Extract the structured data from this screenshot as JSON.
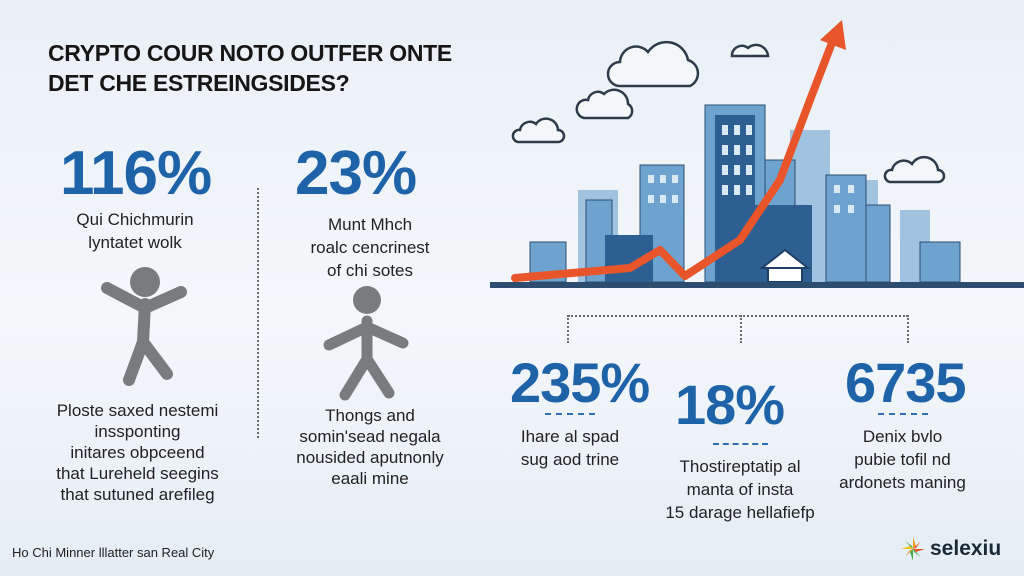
{
  "title": {
    "line1": "CRYPTO COUR NOTO OUTFER ONTE",
    "line2": "DET CHE ESTREINGSIDES?"
  },
  "stats_left": [
    {
      "value": "116%",
      "lines": [
        "Qui Chichmurin",
        "lyntatet wolk"
      ],
      "figure_icon": "person-jumping-icon",
      "notes": [
        "Ploste saxed nestemi",
        "inssponting",
        "initares obpceend",
        "that Lureheld seegins",
        "that sutuned arefileg"
      ]
    },
    {
      "value": "23%",
      "lines": [
        "Munt Mhch",
        "roalc cencrinest",
        "of chi sotes"
      ],
      "figure_icon": "person-walking-icon",
      "notes": [
        "Thongs and",
        "somin'sead negala",
        "nousided aputnonly",
        "eaali mine"
      ]
    }
  ],
  "stats_right": [
    {
      "value": "235%",
      "lines": [
        "Ihare al spad",
        "sug aod trine"
      ]
    },
    {
      "value": "18%",
      "lines": [
        "Thostireptatip al",
        "manta of insta",
        "15 darage hellafiefp"
      ]
    },
    {
      "value": "6735",
      "lines": [
        "Denix bvlo",
        "pubie tofil nd",
        "ardonets maning"
      ]
    }
  ],
  "footer": "Ho Chi Minner lllatter san Real City",
  "brand": {
    "name": "selexiu",
    "icon": "sun-burst-logo-icon"
  },
  "colors": {
    "accent_blue": "#1e63a8",
    "trend_orange": "#e8552a",
    "building_blue": "#6ea3cf"
  }
}
